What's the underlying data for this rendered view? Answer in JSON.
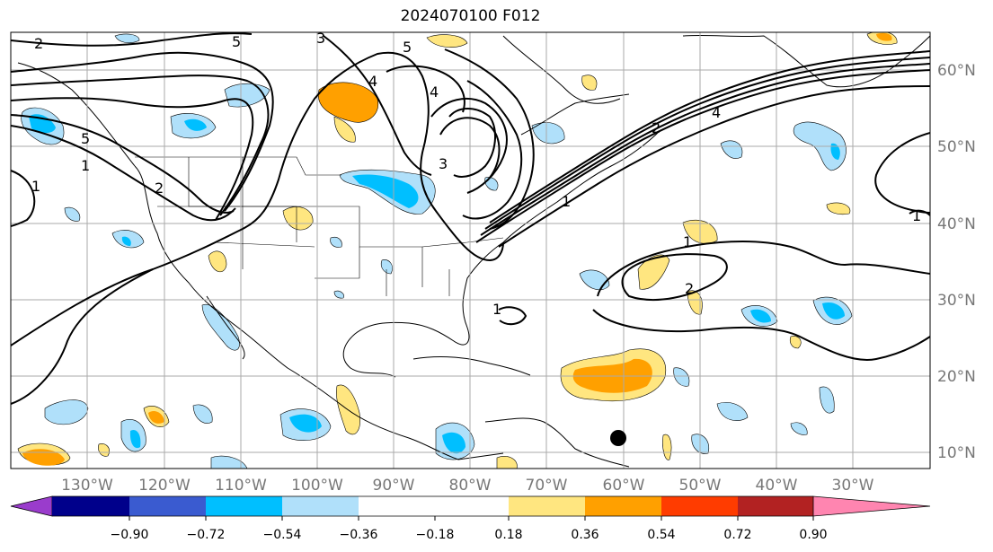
{
  "title": "2024070100 F012",
  "longitude_labels": [
    "130°W",
    "120°W",
    "110°W",
    "100°W",
    "90°W",
    "80°W",
    "70°W",
    "60°W",
    "50°W",
    "40°W",
    "30°W"
  ],
  "latitude_labels": [
    "60°N",
    "50°N",
    "40°N",
    "30°N",
    "20°N",
    "10°N"
  ],
  "colorbar": {
    "tick_labels": [
      "−0.90",
      "−0.72",
      "−0.54",
      "−0.36",
      "−0.18",
      "0.18",
      "0.36",
      "0.54",
      "0.72",
      "0.90"
    ],
    "colors": [
      "#9a3ccc",
      "#00008b",
      "#3a5bd0",
      "#00bfff",
      "#b0e0fa",
      "#ffffff",
      "#ffe680",
      "#ffa000",
      "#ff3c00",
      "#b22222",
      "#ff85b0"
    ]
  },
  "contour_labels": [
    "2",
    "5",
    "3",
    "4",
    "4",
    "5",
    "5",
    "3",
    "2",
    "1",
    "1",
    "1",
    "2",
    "4",
    "1",
    "1",
    "2",
    "1"
  ],
  "marker": "storm-center-dot"
}
